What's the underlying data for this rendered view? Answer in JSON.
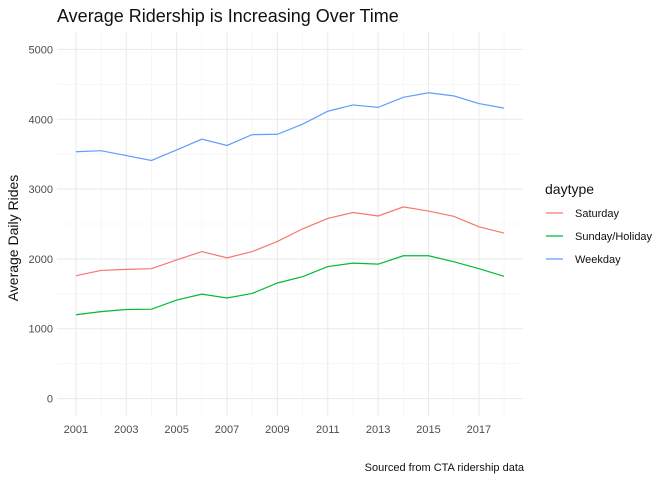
{
  "chart_data": {
    "type": "line",
    "title": "Average Ridership is Increasing Over Time",
    "xlabel": "",
    "ylabel": "Average Daily Rides",
    "caption": "Sourced from CTA ridership data",
    "x": [
      2001,
      2002,
      2003,
      2004,
      2005,
      2006,
      2007,
      2008,
      2009,
      2010,
      2011,
      2012,
      2013,
      2014,
      2015,
      2016,
      2017,
      2018
    ],
    "x_ticks": [
      2001,
      2003,
      2005,
      2007,
      2009,
      2011,
      2013,
      2015,
      2017
    ],
    "xlim": [
      2000.25,
      2018.75
    ],
    "ylim": [
      -250,
      5250
    ],
    "y_ticks": [
      0,
      1000,
      2000,
      3000,
      4000,
      5000
    ],
    "grid": true,
    "legend": {
      "title": "daytype",
      "position": "right"
    },
    "series": [
      {
        "name": "Saturday",
        "color": "#F8766D",
        "values": [
          1760,
          1835,
          1850,
          1860,
          1985,
          2105,
          2015,
          2105,
          2250,
          2430,
          2580,
          2665,
          2615,
          2745,
          2685,
          2610,
          2460,
          2370
        ]
      },
      {
        "name": "Sunday/Holiday",
        "color": "#00BA38",
        "values": [
          1200,
          1245,
          1275,
          1280,
          1410,
          1495,
          1440,
          1505,
          1655,
          1745,
          1890,
          1940,
          1925,
          2045,
          2045,
          1960,
          1860,
          1750
        ]
      },
      {
        "name": "Weekday",
        "color": "#619CFF",
        "values": [
          3535,
          3550,
          3480,
          3410,
          3560,
          3715,
          3625,
          3780,
          3785,
          3930,
          4115,
          4205,
          4170,
          4315,
          4380,
          4335,
          4225,
          4160
        ]
      }
    ]
  }
}
